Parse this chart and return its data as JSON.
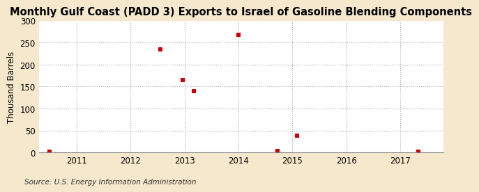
{
  "title": "Monthly Gulf Coast (PADD 3) Exports to Israel of Gasoline Blending Components",
  "ylabel": "Thousand Barrels",
  "source": "Source: U.S. Energy Information Administration",
  "background_color": "#f5e8cc",
  "plot_background_color": "#ffffff",
  "ylim": [
    0,
    300
  ],
  "yticks": [
    0,
    50,
    100,
    150,
    200,
    250,
    300
  ],
  "xlim": [
    2010.3,
    2017.8
  ],
  "xticks": [
    2011,
    2012,
    2013,
    2014,
    2015,
    2016,
    2017
  ],
  "data_x": [
    2010.5,
    2012.55,
    2012.97,
    2013.17,
    2014.0,
    2014.72,
    2015.08,
    2017.33
  ],
  "data_y": [
    2,
    234,
    165,
    140,
    267,
    3,
    38,
    2
  ],
  "marker_color": "#cc0000",
  "marker_size": 4,
  "grid_color": "#aaaaaa",
  "grid_linestyle": ":",
  "title_fontsize": 10.5,
  "label_fontsize": 8.5,
  "tick_fontsize": 8.5,
  "source_fontsize": 7.5
}
